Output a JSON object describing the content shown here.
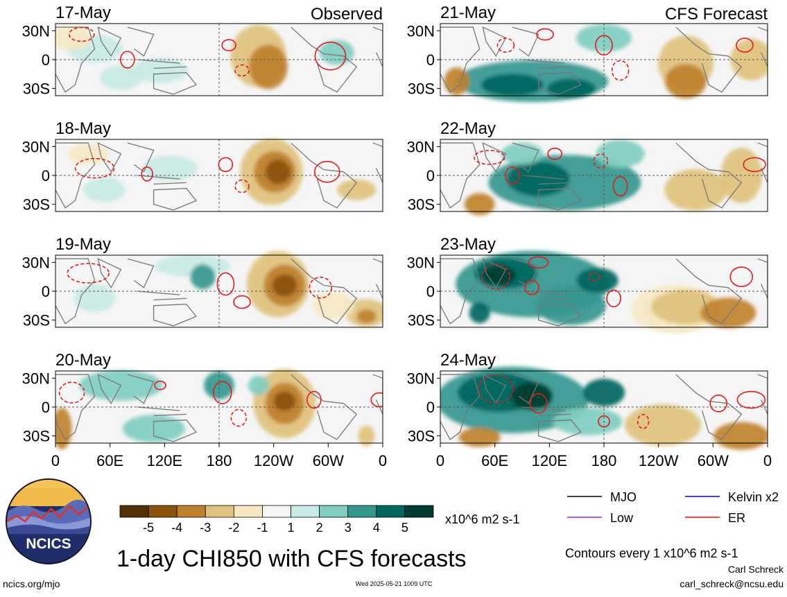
{
  "title": "1-day CHI850 with CFS forecasts",
  "observed_label": "Observed",
  "forecast_label": "CFS Forecast",
  "site_link": "ncics.org/mjo",
  "timestamp": "Wed 2025-05-21 1009 UTC",
  "author": "Carl Schreck",
  "email": "carl_schreck@ncsu.edu",
  "contour_note": "Contours every 1 x10^6 m2 s-1",
  "logo_text": "NCICS",
  "lat_labels": [
    "30N",
    "0",
    "30S"
  ],
  "lon_labels": [
    "0",
    "60E",
    "120E",
    "180",
    "120W",
    "60W",
    "0"
  ],
  "panels_left": [
    {
      "date": "17-May"
    },
    {
      "date": "18-May"
    },
    {
      "date": "19-May"
    },
    {
      "date": "20-May"
    }
  ],
  "panels_right": [
    {
      "date": "21-May"
    },
    {
      "date": "22-May"
    },
    {
      "date": "23-May"
    },
    {
      "date": "24-May"
    }
  ],
  "colorbar": {
    "unit": "x10^6 m2 s-1",
    "labels": [
      "-5",
      "-4",
      "-3",
      "-2",
      "-1",
      "1",
      "2",
      "3",
      "4",
      "5"
    ],
    "colors": [
      "#543005",
      "#8c510a",
      "#bf812d",
      "#dfc27d",
      "#f6e8c3",
      "#f5f5f5",
      "#c7eae5",
      "#80cdc1",
      "#35978f",
      "#01665e",
      "#003c30"
    ]
  },
  "legend": [
    {
      "label": "MJO",
      "color": "#000000",
      "dash": "solid"
    },
    {
      "label": "Kelvin x2",
      "color": "#0000ff",
      "dash": "solid"
    },
    {
      "label": "Low",
      "color": "#a020f0",
      "dash": "solid"
    },
    {
      "label": "ER",
      "color": "#ff0000",
      "dash": "solid"
    }
  ]
}
